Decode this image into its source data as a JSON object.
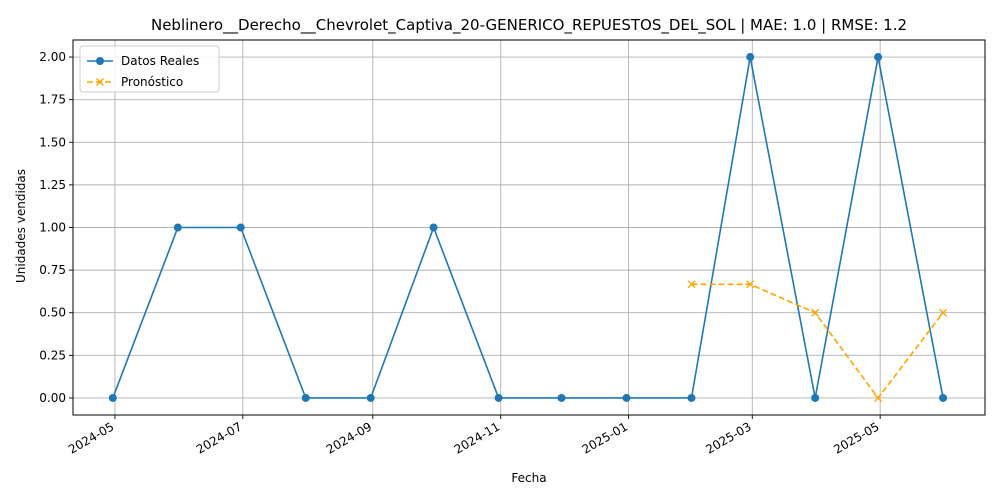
{
  "chart_data": {
    "type": "line",
    "title": "Neblinero__Derecho__Chevrolet_Captiva_20-GENERICO_REPUESTOS_DEL_SOL | MAE: 1.0 | RMSE: 1.2",
    "xlabel": "Fecha",
    "ylabel": "Unidades vendidas",
    "ylim": [
      -0.1,
      2.1
    ],
    "xlim": [
      "2024-04-11",
      "2025-06-20"
    ],
    "grid": true,
    "legend_position": "top-left",
    "x_ticks": [
      "2024-05",
      "2024-07",
      "2024-09",
      "2024-11",
      "2025-01",
      "2025-03",
      "2025-05"
    ],
    "y_ticks": [
      "0.00",
      "0.25",
      "0.50",
      "0.75",
      "1.00",
      "1.25",
      "1.50",
      "1.75",
      "2.00"
    ],
    "series": [
      {
        "name": "Datos Reales",
        "color": "#1f77b4",
        "marker": "circle",
        "linestyle": "solid",
        "x": [
          "2024-04-30",
          "2024-05-31",
          "2024-06-30",
          "2024-07-31",
          "2024-08-31",
          "2024-09-30",
          "2024-10-31",
          "2024-11-30",
          "2024-12-31",
          "2025-01-31",
          "2025-02-28",
          "2025-03-31",
          "2025-04-30",
          "2025-05-31"
        ],
        "values": [
          0,
          1,
          1,
          0,
          0,
          1,
          0,
          0,
          0,
          0,
          2,
          0,
          2,
          0
        ]
      },
      {
        "name": "Pronóstico",
        "color": "#ffa500",
        "marker": "x",
        "linestyle": "dashed",
        "x": [
          "2025-01-31",
          "2025-02-28",
          "2025-03-31",
          "2025-04-30",
          "2025-05-31"
        ],
        "values": [
          0.6667,
          0.6667,
          0.5,
          0.0,
          0.5
        ]
      }
    ]
  }
}
